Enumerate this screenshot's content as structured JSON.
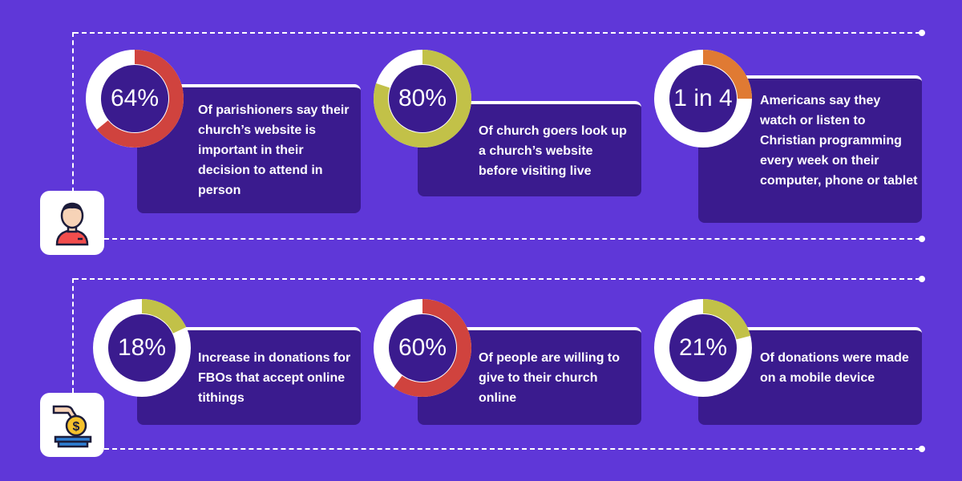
{
  "colors": {
    "background": "#5f37d8",
    "card": "#3a1b8e",
    "red": "#d0433e",
    "green": "#c2c148",
    "orange": "#e07a33"
  },
  "rows": [
    {
      "icon": "person-icon",
      "stats": [
        {
          "value": "64%",
          "fraction": 0.64,
          "color": "red",
          "text": "Of parishioners say their church’s website is important in their decision to attend in person"
        },
        {
          "value": "80%",
          "fraction": 0.8,
          "color": "green",
          "text": "Of church goers look up a church’s website before visiting live"
        },
        {
          "value": "1 in 4",
          "fraction": 0.25,
          "color": "orange",
          "text": "Americans say they watch or listen to Christian programming every week on their computer, phone or tablet"
        }
      ]
    },
    {
      "icon": "coin-donation-icon",
      "stats": [
        {
          "value": "18%",
          "fraction": 0.18,
          "color": "green",
          "text": "Increase in donations for FBOs that accept online tithings"
        },
        {
          "value": "60%",
          "fraction": 0.6,
          "color": "red",
          "text": "Of people are willing to give to their church online"
        },
        {
          "value": "21%",
          "fraction": 0.21,
          "color": "green",
          "text": "Of donations were made on a mobile device"
        }
      ]
    }
  ]
}
